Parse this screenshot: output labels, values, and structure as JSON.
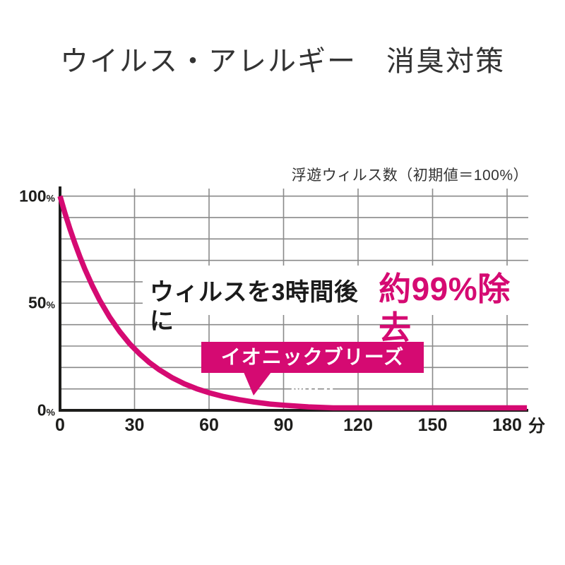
{
  "page": {
    "title": "ウイルス・アレルギー　消臭対策"
  },
  "chart": {
    "note": "浮遊ウィルス数（初期値＝100%）",
    "claim_prefix": "ウィルスを3時間後に",
    "claim_highlight": "約99%除去",
    "callout_label": "イオニックブリーズ MIDI",
    "x_unit": "分",
    "y_suffix": "%"
  },
  "colors": {
    "accent": "#d50a72",
    "grid": "#8a8a8a",
    "axis": "#1d1d1b",
    "text": "#333333"
  },
  "chart_data": {
    "type": "line",
    "title": "浮遊ウィルス数（初期値＝100%）",
    "xlabel": "分",
    "ylabel": "浮遊ウィルス数 (%)",
    "xlim": [
      0,
      188
    ],
    "ylim": [
      0,
      100
    ],
    "x_ticks": [
      0,
      30,
      60,
      90,
      120,
      150,
      180
    ],
    "y_ticks": [
      100,
      50,
      0
    ],
    "grid": true,
    "grid_step_y_percent": 10,
    "annotation": "ウィルスを3時間後に約99%除去",
    "series": [
      {
        "name": "イオニックブリーズ MIDI",
        "x": [
          0,
          2,
          4,
          6,
          8,
          10,
          13,
          16,
          20,
          24,
          28,
          32,
          36,
          40,
          45,
          50,
          55,
          60,
          66,
          72,
          78,
          84,
          90,
          100,
          110,
          120,
          130,
          140,
          150,
          160,
          170,
          180,
          188
        ],
        "y": [
          100,
          92,
          84.6,
          77.9,
          71.7,
          65.9,
          58.2,
          51.3,
          43.5,
          36.8,
          31.1,
          26.4,
          22.3,
          18.9,
          15.3,
          12.4,
          10.1,
          8.2,
          6.4,
          5.0,
          3.9,
          3.0,
          2.4,
          1.6,
          1.0,
          0.7,
          0.4,
          0.3,
          0.2,
          0.13,
          0.08,
          0.05,
          0.04
        ]
      }
    ]
  }
}
